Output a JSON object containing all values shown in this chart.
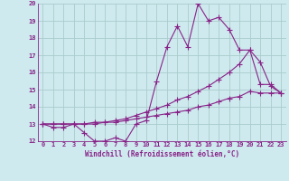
{
  "xlabel": "Windchill (Refroidissement éolien,°C)",
  "background_color": "#ceeaee",
  "line_color": "#882288",
  "grid_color": "#aacccc",
  "x_values": [
    0,
    1,
    2,
    3,
    4,
    5,
    6,
    7,
    8,
    9,
    10,
    11,
    12,
    13,
    14,
    15,
    16,
    17,
    18,
    19,
    20,
    21,
    22,
    23
  ],
  "y_main": [
    13.0,
    12.8,
    12.8,
    13.0,
    12.5,
    12.0,
    12.0,
    12.2,
    12.0,
    13.0,
    13.2,
    15.5,
    17.5,
    18.7,
    17.5,
    20.0,
    19.0,
    19.2,
    18.5,
    17.3,
    17.3,
    15.3,
    15.3,
    14.8
  ],
  "y_line1": [
    13.0,
    13.0,
    13.0,
    13.0,
    13.0,
    13.1,
    13.1,
    13.2,
    13.3,
    13.5,
    13.7,
    13.9,
    14.1,
    14.4,
    14.6,
    14.9,
    15.2,
    15.6,
    16.0,
    16.5,
    17.3,
    16.6,
    15.2,
    14.8
  ],
  "y_line2": [
    13.0,
    13.0,
    13.0,
    13.0,
    13.0,
    13.0,
    13.1,
    13.1,
    13.2,
    13.3,
    13.4,
    13.5,
    13.6,
    13.7,
    13.8,
    14.0,
    14.1,
    14.3,
    14.5,
    14.6,
    14.9,
    14.8,
    14.8,
    14.8
  ],
  "ylim": [
    12,
    20
  ],
  "xlim": [
    -0.5,
    23.5
  ],
  "yticks": [
    12,
    13,
    14,
    15,
    16,
    17,
    18,
    19,
    20
  ],
  "xticks": [
    0,
    1,
    2,
    3,
    4,
    5,
    6,
    7,
    8,
    9,
    10,
    11,
    12,
    13,
    14,
    15,
    16,
    17,
    18,
    19,
    20,
    21,
    22,
    23
  ]
}
